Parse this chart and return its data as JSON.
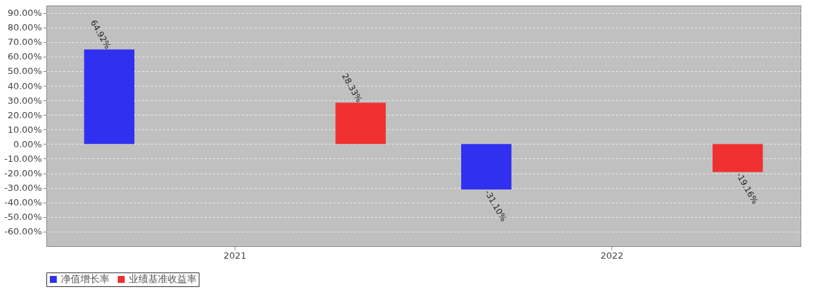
{
  "chart_data": {
    "type": "bar",
    "categories": [
      "2021",
      "2022"
    ],
    "series": [
      {
        "name": "净值增长率",
        "color": "#3030f0",
        "values": [
          64.92,
          -31.1
        ],
        "value_labels": [
          "64.92%",
          "-31.10%"
        ]
      },
      {
        "name": "业绩基准收益率",
        "color": "#f03030",
        "values": [
          28.33,
          -19.16
        ],
        "value_labels": [
          "28.33%",
          "-19.16%"
        ]
      }
    ],
    "ylim": [
      -70,
      95
    ],
    "yticks": [
      {
        "value": -60,
        "label": "-60.00%"
      },
      {
        "value": -50,
        "label": "-50.00%"
      },
      {
        "value": -40,
        "label": "-40.00%"
      },
      {
        "value": -30,
        "label": "-30.00%"
      },
      {
        "value": -20,
        "label": "-20.00%"
      },
      {
        "value": -10,
        "label": "-10.00%"
      },
      {
        "value": 0,
        "label": "0.00%"
      },
      {
        "value": 10,
        "label": "10.00%"
      },
      {
        "value": 20,
        "label": "20.00%"
      },
      {
        "value": 30,
        "label": "30.00%"
      },
      {
        "value": 40,
        "label": "40.00%"
      },
      {
        "value": 50,
        "label": "50.00%"
      },
      {
        "value": 60,
        "label": "60.00%"
      },
      {
        "value": 70,
        "label": "70.00%"
      },
      {
        "value": 80,
        "label": "80.00%"
      },
      {
        "value": 90,
        "label": "90.00%"
      }
    ],
    "grid": "y",
    "legend": "bottom"
  }
}
